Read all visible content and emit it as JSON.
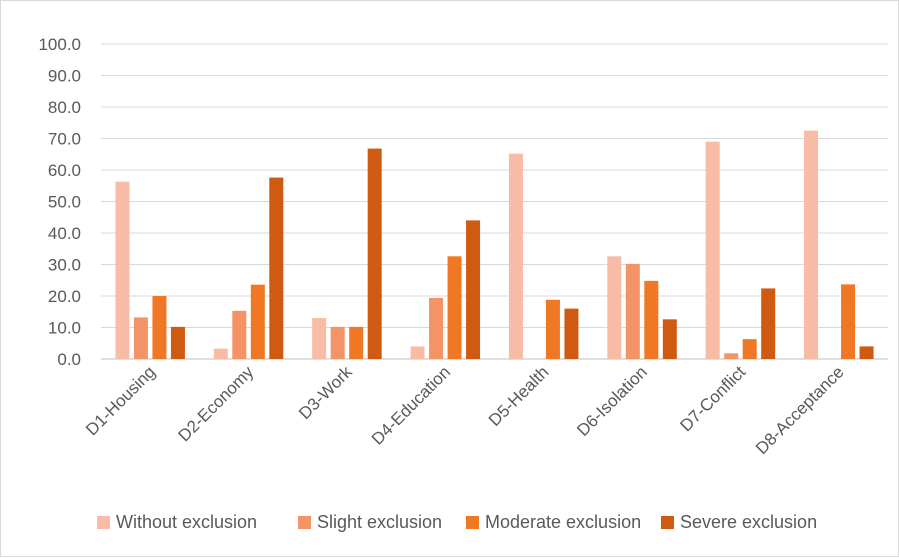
{
  "chart_data": {
    "type": "bar",
    "title": "",
    "xlabel": "",
    "ylabel": "",
    "ylim": [
      0,
      100
    ],
    "y_ticks": [
      "0.0",
      "10.0",
      "20.0",
      "30.0",
      "40.0",
      "50.0",
      "60.0",
      "70.0",
      "80.0",
      "90.0",
      "100.0"
    ],
    "grid": true,
    "legend_position": "bottom",
    "categories": [
      "D1-Housing",
      "D2-Economy",
      "D3-Work",
      "D4-Education",
      "D5-Health",
      "D6-Isolation",
      "D7-Conflict",
      "D8-Acceptance"
    ],
    "series": [
      {
        "name": "Without exclusion",
        "color": "#f8bba6",
        "values": [
          56.3,
          3.3,
          13.0,
          4.0,
          65.2,
          32.6,
          69.0,
          72.5
        ]
      },
      {
        "name": "Slight exclusion",
        "color": "#f39366",
        "values": [
          13.2,
          15.3,
          10.2,
          19.4,
          0.0,
          30.2,
          1.8,
          0.0
        ]
      },
      {
        "name": "Moderate exclusion",
        "color": "#f07824",
        "values": [
          20.0,
          23.6,
          10.2,
          32.6,
          18.8,
          24.8,
          6.3,
          23.7
        ]
      },
      {
        "name": "Severe exclusion",
        "color": "#cf5a12",
        "values": [
          10.2,
          57.6,
          66.8,
          44.0,
          16.0,
          12.6,
          22.4,
          4.0
        ]
      }
    ]
  }
}
